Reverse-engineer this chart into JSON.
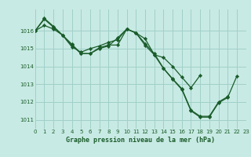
{
  "title": "Graphe pression niveau de la mer (hPa)",
  "background_color": "#c8eae4",
  "grid_color": "#a0d0c8",
  "line_color": "#1a5c2a",
  "marker_color": "#1a5c2a",
  "xlim": [
    0,
    23
  ],
  "ylim": [
    1010.5,
    1017.2
  ],
  "yticks": [
    1011,
    1012,
    1013,
    1014,
    1015,
    1016
  ],
  "xticks": [
    0,
    1,
    2,
    3,
    4,
    5,
    6,
    7,
    8,
    9,
    10,
    11,
    12,
    13,
    14,
    15,
    16,
    17,
    18,
    19,
    20,
    21,
    22,
    23
  ],
  "series1_x": [
    0,
    1,
    2,
    3,
    4,
    5,
    6,
    7,
    8,
    9,
    10,
    11,
    12,
    13,
    14,
    15,
    16,
    17,
    18,
    19,
    20,
    21
  ],
  "series1_y": [
    1016.0,
    1016.7,
    1016.25,
    1015.75,
    1015.2,
    1014.72,
    1014.72,
    1015.0,
    1015.15,
    1015.6,
    1016.1,
    1015.88,
    1015.28,
    1014.72,
    1013.9,
    1013.3,
    1012.75,
    1011.55,
    1011.2,
    1011.2,
    1012.0,
    1012.3
  ],
  "series2_x": [
    0,
    1,
    2,
    3,
    4,
    5,
    6,
    7,
    8,
    9,
    10,
    11,
    12,
    13,
    14,
    15,
    16,
    17,
    18
  ],
  "series2_y": [
    1016.0,
    1016.3,
    1016.1,
    1015.75,
    1015.1,
    1014.8,
    1015.0,
    1015.15,
    1015.35,
    1015.5,
    1016.1,
    1015.88,
    1015.55,
    1014.65,
    1014.5,
    1014.0,
    1013.4,
    1012.8,
    1013.5
  ],
  "series3_x": [
    0,
    1,
    2,
    3,
    4,
    5,
    6,
    7,
    8,
    9,
    10,
    11,
    12,
    13,
    14,
    15,
    16,
    17,
    18,
    19,
    20,
    21,
    22
  ],
  "series3_y": [
    1016.0,
    1016.65,
    1016.2,
    1015.75,
    1015.25,
    1014.72,
    1014.72,
    1015.05,
    1015.2,
    1015.2,
    1016.1,
    1015.88,
    1015.18,
    1014.65,
    1013.88,
    1013.28,
    1012.7,
    1011.5,
    1011.15,
    1011.15,
    1011.95,
    1012.25,
    1013.45
  ],
  "title_fontsize": 6.0,
  "tick_fontsize": 5.0,
  "linewidth": 0.9,
  "markersize": 2.2
}
